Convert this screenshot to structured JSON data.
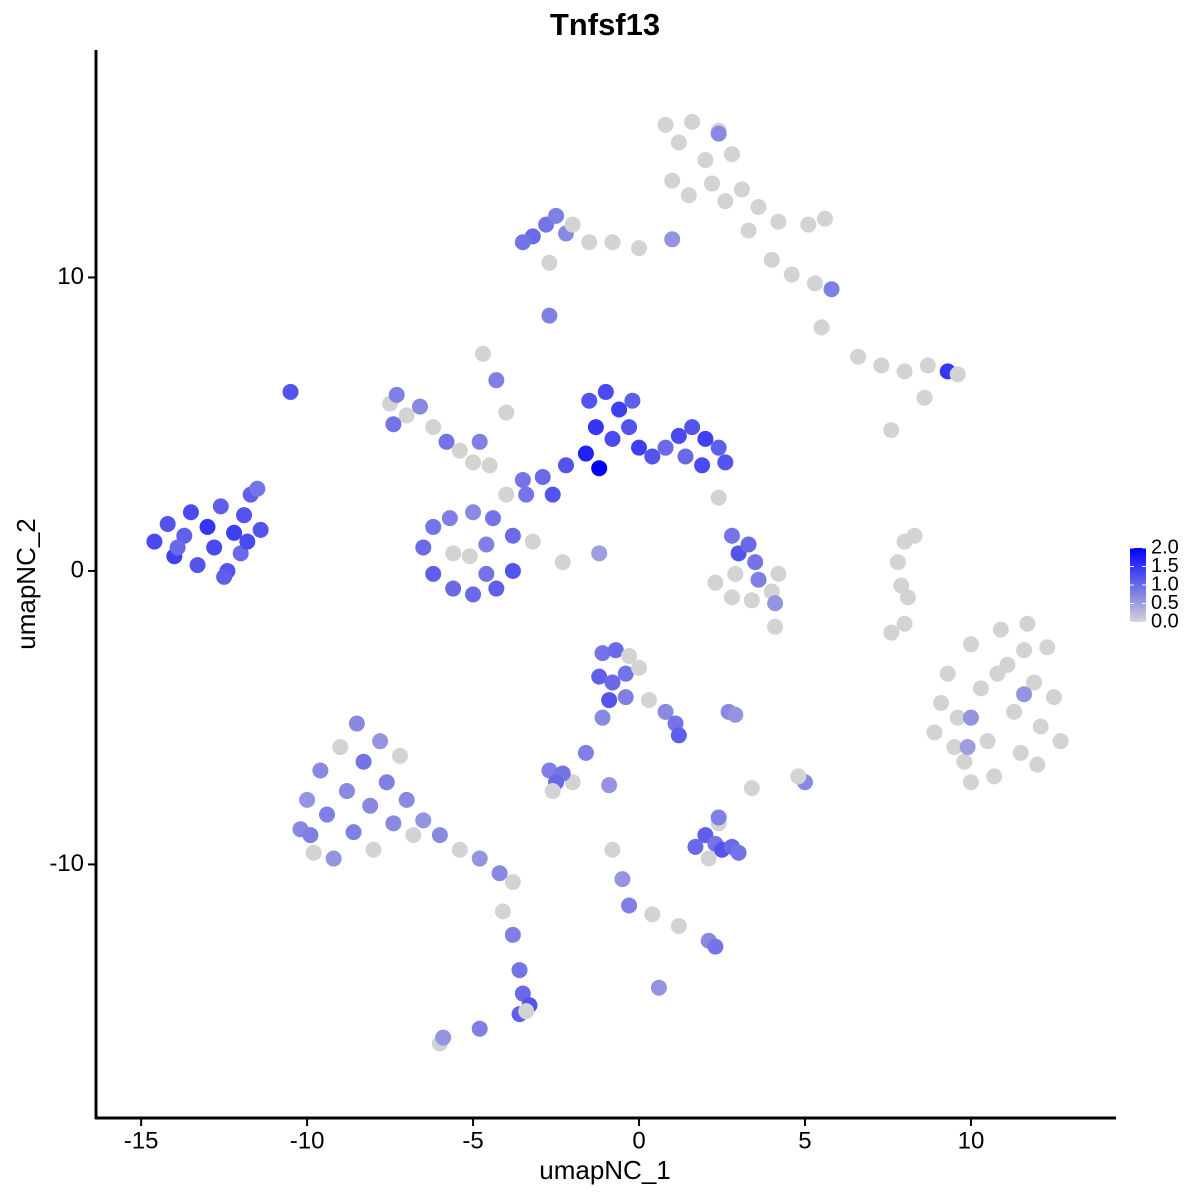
{
  "chart_data": {
    "type": "scatter",
    "title": "Tnfsf13",
    "x_label": "umapNC_1",
    "y_label": "umapNC_2",
    "xlim": [
      -16.36,
      14.37
    ],
    "ylim": [
      -18.64,
      17.75
    ],
    "xticks": [
      -15,
      -10,
      -5,
      0,
      5,
      10
    ],
    "yticks": [
      -10,
      0,
      10
    ],
    "grid": false,
    "colorbar": {
      "lim": [
        0,
        2
      ],
      "low_color": "#d3d3d3",
      "high_color": "#0000ff",
      "ticks": [
        {
          "value": 2,
          "label": "2.0"
        },
        {
          "value": 1.5,
          "label": "1.5"
        },
        {
          "value": 1,
          "label": "1.0"
        },
        {
          "value": 0.5,
          "label": "0.5"
        },
        {
          "value": 0,
          "label": "0.0"
        }
      ]
    },
    "x": [
      -14.6,
      -14.2,
      -14.0,
      -13.7,
      -13.5,
      -13.3,
      -13.0,
      -12.8,
      -12.6,
      -12.4,
      -12.2,
      -12.0,
      -11.9,
      -11.7,
      -11.5,
      -11.8,
      -13.9,
      -12.5,
      -11.4,
      -10.5,
      0.8,
      1.2,
      1.6,
      2.0,
      2.4,
      2.8,
      1.0,
      1.5,
      2.2,
      2.6,
      3.1,
      3.6,
      4.2,
      5.1,
      5.6,
      3.3,
      4.0,
      4.6,
      5.3,
      5.8,
      5.5,
      2.4,
      0.0,
      -0.8,
      -1.5,
      1.0,
      -3.2,
      -2.8,
      -2.5,
      -2.2,
      -3.5,
      -2.0,
      -2.7,
      -2.7,
      9.3,
      9.6,
      9.8,
      10.0,
      10.3,
      10.5,
      10.7,
      10.9,
      11.1,
      11.3,
      11.5,
      11.7,
      11.9,
      12.1,
      12.3,
      12.5,
      12.7,
      9.1,
      9.5,
      10.8,
      11.6,
      12.0,
      10.0,
      8.9,
      10.0,
      11.6,
      9.9,
      8.0,
      -1.5,
      -1.0,
      -0.6,
      -1.3,
      -0.8,
      -0.3,
      0.0,
      -1.6,
      -2.2,
      -2.9,
      -3.4,
      -1.2,
      0.4,
      0.8,
      1.2,
      1.6,
      2.0,
      2.4,
      2.6,
      1.4,
      1.9,
      -0.2,
      -2.6,
      2.4,
      -6.5,
      -6.2,
      -6.2,
      -5.7,
      -5.6,
      -5.0,
      -5.0,
      -4.4,
      -4.3,
      -3.8,
      -3.8,
      -5.1,
      -4.6,
      -5.6,
      -4.6,
      -4.0,
      -3.5,
      -4.5,
      -4.8,
      -3.2,
      -2.3,
      -1.2,
      -7.5,
      -7.3,
      -7.0,
      -6.6,
      -6.2,
      -5.8,
      -5.4,
      -4.7,
      -4.3,
      -4.0,
      -7.4,
      -5.0,
      -10.2,
      -10.0,
      -9.8,
      -9.6,
      -9.4,
      -9.2,
      -9.0,
      -8.8,
      -8.6,
      -8.5,
      -8.3,
      -8.1,
      -8.0,
      -7.8,
      -7.6,
      -7.4,
      -7.2,
      -7.0,
      -6.8,
      -6.5,
      -6.0,
      -5.4,
      -4.8,
      -4.2,
      -3.8,
      -9.9,
      -4.1,
      -3.8,
      -3.6,
      -3.5,
      -3.3,
      -3.6,
      -3.4,
      -4.8,
      -6.0,
      -5.9,
      -1.1,
      -0.7,
      -0.3,
      -1.2,
      -0.8,
      -0.4,
      0.0,
      -0.9,
      -0.4,
      0.3,
      0.8,
      1.1,
      1.2,
      -1.1,
      -1.6,
      -2.0,
      1.7,
      2.0,
      2.3,
      2.5,
      2.8,
      2.4,
      2.1,
      3.0,
      2.4,
      2.8,
      3.0,
      3.3,
      3.5,
      2.9,
      3.6,
      2.3,
      2.8,
      3.4,
      4.0,
      4.2,
      4.1,
      8.0,
      7.8,
      7.9,
      8.1,
      8.3,
      7.6,
      6.6,
      7.3,
      8.0,
      8.7,
      9.3,
      9.6,
      8.6,
      7.6,
      -2.7,
      -2.3,
      -2.5,
      -2.6,
      -0.9,
      -0.8,
      -0.5,
      -0.3,
      0.4,
      1.2,
      2.1,
      2.3,
      0.6,
      2.7,
      2.9,
      5.0,
      4.8,
      3.4,
      4.1
    ],
    "y": [
      1.0,
      1.6,
      0.5,
      1.2,
      2.0,
      0.2,
      1.5,
      0.8,
      2.2,
      0.0,
      1.3,
      0.6,
      1.9,
      2.6,
      2.8,
      1.0,
      0.8,
      -0.2,
      1.4,
      6.1,
      15.2,
      14.6,
      15.3,
      14.0,
      15.0,
      14.2,
      13.3,
      12.8,
      13.2,
      12.6,
      13.0,
      12.4,
      11.9,
      11.8,
      12.0,
      11.6,
      10.6,
      10.1,
      9.8,
      9.6,
      8.3,
      14.9,
      11.0,
      11.2,
      11.2,
      11.3,
      11.4,
      11.8,
      12.1,
      11.5,
      11.2,
      11.8,
      10.5,
      8.7,
      -3.5,
      -5.0,
      -6.5,
      -2.5,
      -4.0,
      -5.8,
      -7.0,
      -2.0,
      -3.2,
      -4.8,
      -6.2,
      -1.8,
      -3.8,
      -5.3,
      -2.6,
      -4.3,
      -5.8,
      -4.5,
      -6.0,
      -3.5,
      -2.7,
      -6.6,
      -7.2,
      -5.5,
      -5.0,
      -4.2,
      -6.0,
      -1.8,
      5.8,
      6.1,
      5.5,
      4.9,
      4.5,
      4.9,
      4.2,
      4.0,
      3.6,
      3.2,
      2.6,
      3.5,
      3.9,
      4.2,
      4.6,
      4.9,
      4.5,
      4.2,
      3.7,
      3.9,
      3.6,
      5.8,
      2.6,
      2.5,
      0.8,
      1.5,
      -0.1,
      1.8,
      -0.6,
      2.0,
      -0.8,
      1.8,
      -0.6,
      1.2,
      0.0,
      0.5,
      0.9,
      0.6,
      -0.1,
      2.6,
      3.1,
      3.6,
      4.4,
      1.0,
      0.3,
      0.6,
      5.7,
      6.0,
      5.3,
      5.6,
      4.9,
      4.4,
      4.1,
      7.4,
      6.5,
      5.4,
      5.0,
      3.7,
      -8.8,
      -7.8,
      -9.6,
      -6.8,
      -8.3,
      -9.8,
      -6.0,
      -7.5,
      -8.9,
      -5.2,
      -6.5,
      -8.0,
      -9.5,
      -5.8,
      -7.2,
      -8.6,
      -6.3,
      -7.8,
      -9.0,
      -8.5,
      -9.0,
      -9.5,
      -9.8,
      -10.3,
      -10.6,
      -9.0,
      -11.6,
      -12.4,
      -13.6,
      -14.4,
      -14.8,
      -15.1,
      -15.0,
      -15.6,
      -16.1,
      -15.9,
      -2.8,
      -2.7,
      -2.9,
      -3.6,
      -3.8,
      -3.5,
      -3.3,
      -4.4,
      -4.3,
      -4.4,
      -4.8,
      -5.2,
      -5.6,
      -5.0,
      -6.2,
      -7.2,
      -9.4,
      -9.0,
      -9.3,
      -9.5,
      -9.4,
      -8.6,
      -9.8,
      -9.6,
      -8.4,
      1.2,
      0.6,
      0.9,
      0.3,
      -0.1,
      -0.3,
      -0.4,
      -0.9,
      -1.0,
      -0.7,
      -0.1,
      -1.1,
      1.0,
      0.3,
      -0.5,
      -0.9,
      1.2,
      -2.1,
      7.3,
      7.0,
      6.8,
      7.0,
      6.8,
      6.7,
      5.9,
      4.8,
      -6.8,
      -6.9,
      -7.2,
      -7.5,
      -7.3,
      -9.5,
      -10.5,
      -11.4,
      -11.7,
      -12.1,
      -12.6,
      -12.8,
      -14.2,
      -4.8,
      -4.9,
      -7.2,
      -7.0,
      -7.4,
      -1.9
    ],
    "values": [
      1.3,
      1.2,
      1.4,
      1.1,
      1.3,
      1.2,
      1.5,
      1.3,
      1.1,
      1.2,
      1.4,
      1.0,
      1.2,
      1.1,
      0.9,
      1.3,
      1.0,
      1.1,
      1.2,
      1.2,
      0,
      0,
      0,
      0,
      0,
      0,
      0,
      0,
      0,
      0,
      0,
      0,
      0,
      0,
      0,
      0,
      0,
      0,
      0,
      0.8,
      0,
      0.7,
      0,
      0,
      0,
      0.6,
      1.0,
      0.9,
      0.8,
      0.7,
      0.9,
      0,
      0,
      0.8,
      0,
      0,
      0,
      0,
      0,
      0,
      0,
      0,
      0,
      0,
      0,
      0,
      0,
      0,
      0,
      0,
      0,
      0,
      0,
      0,
      0,
      0,
      0,
      0,
      0.6,
      0.6,
      0.5,
      0,
      1.2,
      1.3,
      1.4,
      1.5,
      1.3,
      1.2,
      1.4,
      1.7,
      1.2,
      1.0,
      0.9,
      2.0,
      1.2,
      1.0,
      1.3,
      1.2,
      1.4,
      1.1,
      1.2,
      1.0,
      1.3,
      1.1,
      1.2,
      0,
      1.0,
      0.9,
      1.1,
      0.8,
      1.0,
      0.7,
      1.0,
      0.9,
      1.1,
      1.0,
      1.2,
      0,
      0.8,
      0,
      0.9,
      0,
      0.9,
      0,
      0.8,
      0,
      0,
      0.5,
      0,
      0.8,
      0,
      0.7,
      0,
      0.9,
      0,
      0,
      0.8,
      0,
      0.9,
      0,
      0.7,
      0.6,
      0,
      0.7,
      0.8,
      0.6,
      0,
      0.7,
      0.8,
      0.7,
      0.9,
      0.7,
      0,
      0.6,
      0.8,
      0.7,
      0,
      0.7,
      0,
      0.6,
      0.7,
      0,
      0.6,
      0.7,
      0,
      0.8,
      0,
      0.8,
      0.9,
      1.0,
      1.2,
      1.1,
      0,
      0.8,
      0,
      0.6,
      0.9,
      1.0,
      0,
      1.1,
      1.0,
      0.9,
      0,
      1.2,
      0.8,
      0,
      0.7,
      0.9,
      1.1,
      0.7,
      0.8,
      0,
      1.0,
      1.1,
      0.9,
      1.2,
      1.0,
      0,
      0,
      0.9,
      0.8,
      0.9,
      1.2,
      1.0,
      0.9,
      0,
      0.8,
      0,
      0,
      0,
      0,
      0,
      0.6,
      0,
      0,
      0,
      0,
      0,
      0,
      0,
      0,
      0,
      0,
      1.5,
      0,
      0,
      0,
      0.8,
      0.9,
      1.0,
      0,
      0.6,
      0,
      0.6,
      0.8,
      0,
      0,
      0.7,
      0.9,
      0.6,
      0.7,
      0.6,
      0.7,
      0,
      0,
      0
    ]
  }
}
